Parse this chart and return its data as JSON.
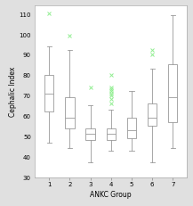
{
  "title": "",
  "xlabel": "ANKC Group",
  "ylabel": "Cephalic Index",
  "ylim": [
    30,
    114
  ],
  "yticks": [
    30,
    40,
    50,
    60,
    70,
    80,
    90,
    100,
    110
  ],
  "groups": [
    1,
    2,
    3,
    4,
    5,
    6,
    7
  ],
  "boxes": [
    {
      "q1": 62,
      "median": 71,
      "q3": 80,
      "whislo": 47,
      "whishi": 94,
      "fliers": [
        110
      ]
    },
    {
      "q1": 54,
      "median": 59,
      "q3": 69,
      "whislo": 44,
      "whishi": 92,
      "fliers": [
        99
      ]
    },
    {
      "q1": 48,
      "median": 51,
      "q3": 54,
      "whislo": 37,
      "whishi": 65,
      "fliers": [
        74
      ]
    },
    {
      "q1": 48,
      "median": 51,
      "q3": 54,
      "whislo": 43,
      "whishi": 63,
      "fliers": [
        66,
        68,
        70,
        71,
        72,
        73,
        74,
        80
      ]
    },
    {
      "q1": 49,
      "median": 53,
      "q3": 59,
      "whislo": 43,
      "whishi": 72,
      "fliers": []
    },
    {
      "q1": 55,
      "median": 59,
      "q3": 66,
      "whislo": 37,
      "whishi": 83,
      "fliers": [
        90,
        92
      ]
    },
    {
      "q1": 57,
      "median": 69,
      "q3": 85,
      "whislo": 44,
      "whishi": 109,
      "fliers": []
    }
  ],
  "box_color": "#ffffff",
  "whisker_color": "#999999",
  "median_color": "#999999",
  "cap_color": "#999999",
  "flier_color": "#90EE90",
  "flier_marker": "x",
  "background_color": "#e0e0e0",
  "plot_bg_color": "#ffffff",
  "box_width": 0.45,
  "linewidth": 0.6,
  "tick_fontsize": 5.0,
  "label_fontsize": 5.5
}
